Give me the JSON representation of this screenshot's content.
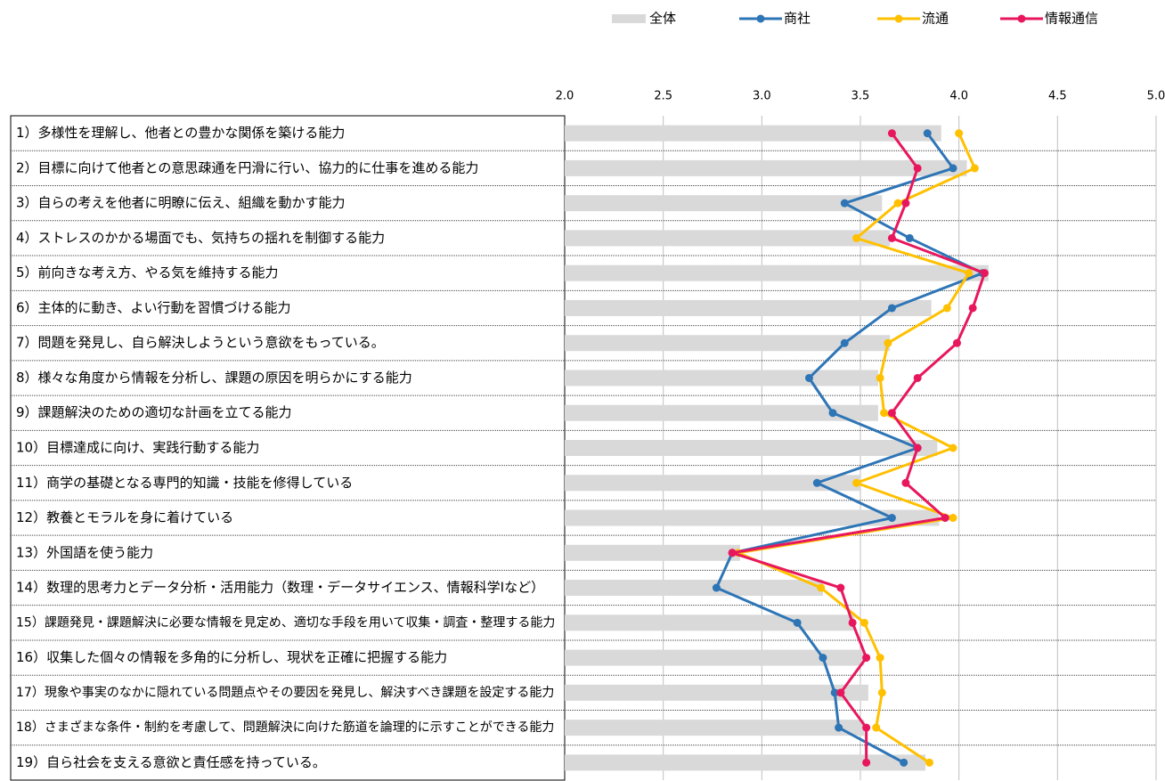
{
  "chart_data": {
    "type": "combo",
    "categories": [
      "1）多様性を理解し、他者との豊かな関係を築ける能力",
      "2）目標に向けて他者との意思疎通を円滑に行い、協力的に仕事を進める能力",
      "3）自らの考えを他者に明瞭に伝え、組織を動かす能力",
      "4）ストレスのかかる場面でも、気持ちの揺れを制御する能力",
      "5）前向きな考え方、やる気を維持する能力",
      "6）主体的に動き、よい行動を習慣づける能力",
      "7）問題を発見し、自ら解決しようという意欲をもっている。",
      "8）様々な角度から情報を分析し、課題の原因を明らかにする能力",
      "9）課題解決のための適切な計画を立てる能力",
      "10）目標達成に向け、実践行動する能力",
      "11）商学の基礎となる専門的知識・技能を修得している",
      "12）教養とモラルを身に着けている",
      "13）外国語を使う能力",
      "14）数理的思考力とデータ分析・活用能力（数理・データサイエンス、情報科学Iなど）",
      "15）課題発見・課題解決に必要な情報を見定め、適切な手段を用いて収集・調査・整理する能力",
      "16）収集した個々の情報を多角的に分析し、現状を正確に把握する能力",
      "17）現象や事実のなかに隠れている問題点やその要因を発見し、解決すべき課題を設定する能力",
      "18）さまざまな条件・制約を考慮して、問題解決に向けた筋道を論理的に示すことができる能力",
      "19）自ら社会を支える意欲と責任感を持っている。"
    ],
    "series": [
      {
        "name": "全体",
        "type": "bar",
        "color": "#d9d9d9",
        "values": [
          3.91,
          4.04,
          3.61,
          3.65,
          4.15,
          3.86,
          3.65,
          3.59,
          3.59,
          3.89,
          3.5,
          3.9,
          2.89,
          3.31,
          3.47,
          3.52,
          3.54,
          3.52,
          3.83
        ]
      },
      {
        "name": "商社",
        "type": "line",
        "color": "#2e75b6",
        "values": [
          3.84,
          3.97,
          3.42,
          3.75,
          4.12,
          3.66,
          3.42,
          3.24,
          3.36,
          3.79,
          3.28,
          3.66,
          2.85,
          2.77,
          3.18,
          3.31,
          3.37,
          3.39,
          3.72
        ]
      },
      {
        "name": "流通",
        "type": "line",
        "color": "#ffc000",
        "values": [
          4.0,
          4.08,
          3.69,
          3.48,
          4.05,
          3.94,
          3.64,
          3.6,
          3.62,
          3.97,
          3.48,
          3.97,
          2.88,
          3.3,
          3.52,
          3.6,
          3.61,
          3.58,
          3.85
        ]
      },
      {
        "name": "情報通信",
        "type": "line",
        "color": "#e8175d",
        "values": [
          3.66,
          3.79,
          3.73,
          3.66,
          4.13,
          4.07,
          3.99,
          3.79,
          3.66,
          3.79,
          3.73,
          3.93,
          2.85,
          3.4,
          3.46,
          3.53,
          3.4,
          3.53,
          3.53
        ]
      }
    ],
    "xlim": [
      2,
      5
    ],
    "xticks": [
      {
        "value": 2,
        "label": "2.0"
      },
      2.5,
      {
        "value": 3,
        "label": "3.0"
      },
      3.5,
      {
        "value": 4,
        "label": "4.0"
      },
      4.5,
      {
        "value": 5,
        "label": "5.0"
      }
    ],
    "grid": true,
    "legend": "top-right"
  }
}
